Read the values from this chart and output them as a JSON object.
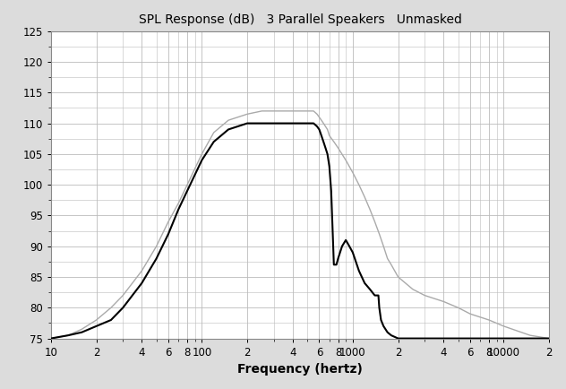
{
  "title": "SPL Response (dB)   3 Parallel Speakers   Unmasked",
  "xlabel": "Frequency (hertz)",
  "ylim": [
    75,
    125
  ],
  "yticks": [
    75,
    80,
    85,
    90,
    95,
    100,
    105,
    110,
    115,
    120,
    125
  ],
  "xlim_log": [
    10,
    20000
  ],
  "background_color": "#dcdcdc",
  "plot_bg_color": "#ffffff",
  "grid_color": "#bbbbbb",
  "line_color_black": "#000000",
  "line_color_gray": "#aaaaaa",
  "title_fontsize": 10,
  "xlabel_fontsize": 10,
  "tick_fontsize": 8.5,
  "black_curve_freq": [
    10,
    13,
    16,
    20,
    25,
    30,
    40,
    50,
    60,
    70,
    80,
    100,
    120,
    150,
    200,
    250,
    300,
    400,
    500,
    550,
    580,
    600,
    620,
    640,
    660,
    680,
    700,
    710,
    720,
    730,
    740,
    750,
    780,
    800,
    850,
    900,
    950,
    1000,
    1100,
    1200,
    1300,
    1400,
    1450,
    1480,
    1500,
    1520,
    1540,
    1600,
    1700,
    1800,
    2000,
    2500,
    3000,
    4000,
    5000,
    6000,
    8000,
    10000,
    15000,
    20000
  ],
  "black_curve_spl": [
    75,
    75.5,
    76,
    77,
    78,
    80,
    84,
    88,
    92,
    96,
    99,
    104,
    107,
    109,
    110,
    110,
    110,
    110,
    110,
    110,
    109.5,
    109,
    108,
    107,
    106,
    105,
    103,
    101,
    99,
    95,
    91,
    87,
    87,
    88,
    90,
    91,
    90,
    89,
    86,
    84,
    83,
    82,
    82,
    82,
    80,
    79,
    78,
    77,
    76,
    75.5,
    75,
    75,
    75,
    75,
    75,
    75,
    75,
    75,
    75,
    75
  ],
  "gray_curve_freq": [
    10,
    13,
    16,
    20,
    25,
    30,
    40,
    50,
    60,
    70,
    80,
    100,
    120,
    150,
    200,
    250,
    300,
    400,
    500,
    550,
    580,
    600,
    620,
    640,
    680,
    700,
    750,
    800,
    900,
    1000,
    1100,
    1200,
    1300,
    1400,
    1500,
    1600,
    1700,
    1800,
    2000,
    2500,
    3000,
    4000,
    5000,
    6000,
    8000,
    10000,
    15000,
    20000
  ],
  "gray_curve_spl": [
    75,
    75.5,
    76.5,
    78,
    80,
    82,
    86,
    90,
    94,
    97,
    100,
    105,
    108.5,
    110.5,
    111.5,
    112,
    112,
    112,
    112,
    112,
    111.5,
    111,
    110.5,
    110,
    109,
    108,
    107,
    106,
    104,
    102,
    100,
    98,
    96,
    94,
    92,
    90,
    88,
    87,
    85,
    83,
    82,
    81,
    80,
    79,
    78,
    77,
    75.5,
    75
  ]
}
